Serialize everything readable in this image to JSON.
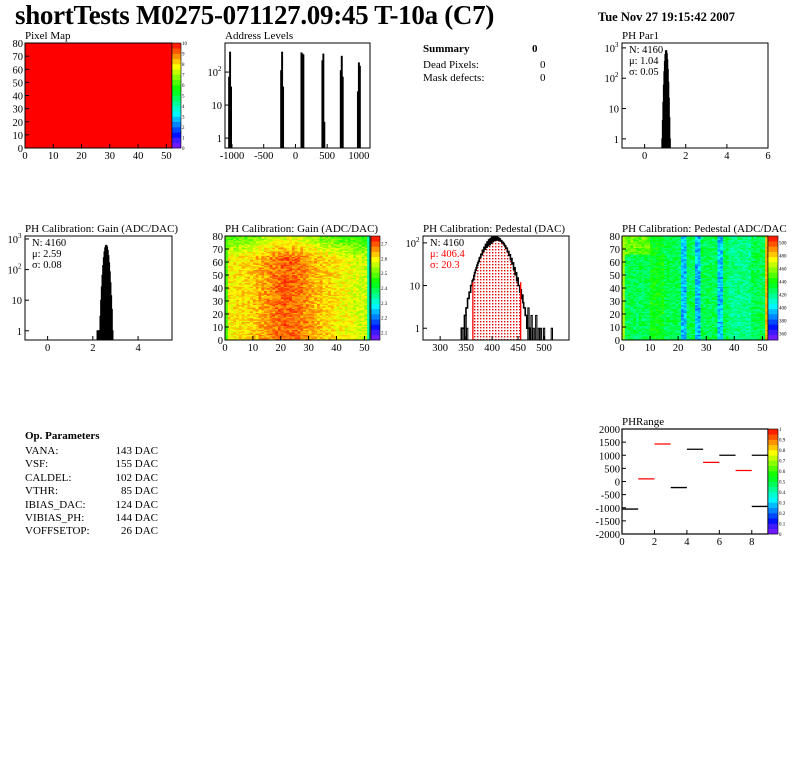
{
  "header": {
    "title": "shortTests M0275-071127.09:45 T-10a (C7)",
    "date": "Tue Nov 27 19:15:42 2007"
  },
  "summary": {
    "title": "Summary",
    "value": "0",
    "rows": [
      {
        "label": "Dead Pixels:",
        "value": "0"
      },
      {
        "label": "Mask defects:",
        "value": "0"
      }
    ]
  },
  "op_params": {
    "title": "Op. Parameters",
    "rows": [
      {
        "name": "VANA:",
        "value": "143 DAC"
      },
      {
        "name": "VSF:",
        "value": "155 DAC"
      },
      {
        "name": "CALDEL:",
        "value": "102 DAC"
      },
      {
        "name": "VTHR:",
        "value": "85 DAC"
      },
      {
        "name": "IBIAS_DAC:",
        "value": "124 DAC"
      },
      {
        "name": "VIBIAS_PH:",
        "value": "144 DAC"
      },
      {
        "name": "VOFFSETOP:",
        "value": "26 DAC"
      }
    ]
  },
  "colors": {
    "palette": "rainbow",
    "hist_line": "#000000",
    "fit_lines": "#ff0000",
    "stats_highlight": "#ff0000"
  },
  "chart_data": [
    {
      "id": "pixel_map",
      "type": "heatmap",
      "title": "Pixel Map",
      "xlim": [
        0,
        52
      ],
      "ylim": [
        0,
        80
      ],
      "zlim": [
        0,
        10
      ],
      "xticks": [
        0,
        10,
        20,
        30,
        40,
        50
      ],
      "yticks": [
        0,
        10,
        20,
        30,
        40,
        50,
        60,
        70,
        80
      ],
      "zticks": [
        0,
        1,
        2,
        3,
        4,
        5,
        6,
        7,
        8,
        9,
        10
      ],
      "uniform_value": 10
    },
    {
      "id": "address_levels",
      "type": "bar",
      "title": "Address Levels",
      "log_y": true,
      "xlim": [
        -1110,
        1175
      ],
      "ylim": [
        0.5,
        760
      ],
      "xticks": [
        -1000,
        -500,
        0,
        500,
        1000
      ],
      "yticks": [
        1,
        10,
        100
      ],
      "bins": [
        [
          -1045,
          70
        ],
        [
          -1030,
          400
        ],
        [
          -1015,
          35
        ],
        [
          -225,
          110
        ],
        [
          -210,
          400
        ],
        [
          -195,
          35
        ],
        [
          95,
          380
        ],
        [
          110,
          350
        ],
        [
          125,
          330
        ],
        [
          425,
          220
        ],
        [
          440,
          350
        ],
        [
          455,
          3
        ],
        [
          715,
          110
        ],
        [
          730,
          300
        ],
        [
          745,
          70
        ],
        [
          985,
          25
        ],
        [
          1000,
          190
        ],
        [
          1015,
          150
        ]
      ]
    },
    {
      "id": "ph_par1",
      "type": "bar",
      "title": "PH Par1",
      "log_y": true,
      "xlim": [
        -1.1,
        6
      ],
      "ylim": [
        0.5,
        1450
      ],
      "xticks": [
        0,
        2,
        4,
        6
      ],
      "yticks": [
        1,
        10,
        100,
        1000
      ],
      "stats": {
        "n": "N: 4160",
        "mean": "μ: 1.04",
        "sigma": "σ: 0.05"
      },
      "entries": 4160,
      "mean": 1.04,
      "sigma": 0.05
    },
    {
      "id": "gain_hist",
      "type": "bar",
      "title": "PH Calibration: Gain (ADC/DAC)",
      "log_y": true,
      "xlim": [
        -1,
        5.5
      ],
      "ylim": [
        0.5,
        1250
      ],
      "xticks": [
        0,
        2,
        4
      ],
      "yticks": [
        1,
        10,
        100,
        1000
      ],
      "stats": {
        "n": "N: 4160",
        "mean": "μ: 2.59",
        "sigma": "σ: 0.08"
      },
      "entries": 4160,
      "mean": 2.59,
      "sigma": 0.08,
      "outliers": [
        [
          2.2,
          1
        ],
        [
          2.26,
          1
        ],
        [
          2.32,
          1
        ]
      ]
    },
    {
      "id": "gain_map",
      "type": "heatmap",
      "title": "PH Calibration: Gain (ADC/DAC)",
      "xlim": [
        0,
        52
      ],
      "ylim": [
        0,
        80
      ],
      "zlim": [
        2.05,
        2.75
      ],
      "xticks": [
        0,
        10,
        20,
        30,
        40,
        50
      ],
      "yticks": [
        0,
        10,
        20,
        30,
        40,
        50,
        60,
        70,
        80
      ],
      "zticks": [
        2.1,
        2.2,
        2.3,
        2.4,
        2.5,
        2.6,
        2.7
      ]
    },
    {
      "id": "pedestal_hist",
      "type": "bar",
      "title": "PH Calibration: Pedestal (DAC)",
      "log_y": true,
      "xlim": [
        267,
        548
      ],
      "ylim": [
        0.53,
        145
      ],
      "xticks": [
        300,
        350,
        400,
        450,
        500
      ],
      "yticks": [
        1,
        10,
        100
      ],
      "stats": {
        "n": "N: 4160",
        "mean": "μ: 406.4",
        "sigma": "σ: 20.3"
      },
      "entries": 4160,
      "mean": 406.4,
      "sigma": 20.3,
      "fit_range": [
        363,
        455
      ],
      "outliers": [
        [
          345,
          1
        ],
        [
          349,
          2
        ],
        [
          352,
          1
        ],
        [
          470,
          3
        ],
        [
          476,
          2
        ],
        [
          480,
          1
        ],
        [
          485,
          2
        ],
        [
          490,
          1
        ],
        [
          494,
          1
        ],
        [
          500,
          1
        ],
        [
          515,
          1
        ]
      ]
    },
    {
      "id": "pedestal_map",
      "type": "heatmap",
      "title": "PH Calibration: Pedestal (ADC/DAC",
      "xlim": [
        0,
        52
      ],
      "ylim": [
        0,
        80
      ],
      "zlim": [
        350,
        510
      ],
      "xticks": [
        0,
        10,
        20,
        30,
        40,
        50
      ],
      "yticks": [
        0,
        10,
        20,
        30,
        40,
        50,
        60,
        70,
        80
      ],
      "zticks": [
        360,
        380,
        400,
        420,
        440,
        460,
        480,
        500
      ]
    },
    {
      "id": "ph_range",
      "type": "line",
      "title": "PHRange",
      "xlim": [
        0,
        9
      ],
      "ylim": [
        -2000,
        2000
      ],
      "zlim": [
        0,
        1
      ],
      "xticks": [
        0,
        2,
        4,
        6,
        8
      ],
      "yticks": [
        2000,
        1500,
        1000,
        500,
        0,
        -500,
        -1000,
        -1500,
        -2000
      ],
      "zticks": [
        0,
        0.1,
        0.2,
        0.3,
        0.4,
        0.5,
        0.6,
        0.7,
        0.8,
        0.9,
        1
      ],
      "segments": [
        {
          "x": [
            0,
            1
          ],
          "y": -1050,
          "color": "#000000"
        },
        {
          "x": [
            1,
            2
          ],
          "y": 100,
          "color": "#ff0000"
        },
        {
          "x": [
            2,
            3
          ],
          "y": 1430,
          "color": "#ff0000"
        },
        {
          "x": [
            3,
            4
          ],
          "y": -230,
          "color": "#000000"
        },
        {
          "x": [
            4,
            5
          ],
          "y": 1230,
          "color": "#000000"
        },
        {
          "x": [
            5,
            6
          ],
          "y": 730,
          "color": "#ff0000"
        },
        {
          "x": [
            6,
            7
          ],
          "y": 1000,
          "color": "#000000"
        },
        {
          "x": [
            7,
            8
          ],
          "y": 420,
          "color": "#ff0000"
        },
        {
          "x": [
            8,
            9
          ],
          "y": 1000,
          "color": "#000000"
        },
        {
          "x": [
            8,
            9
          ],
          "y": -950,
          "color": "#000000"
        }
      ]
    }
  ]
}
